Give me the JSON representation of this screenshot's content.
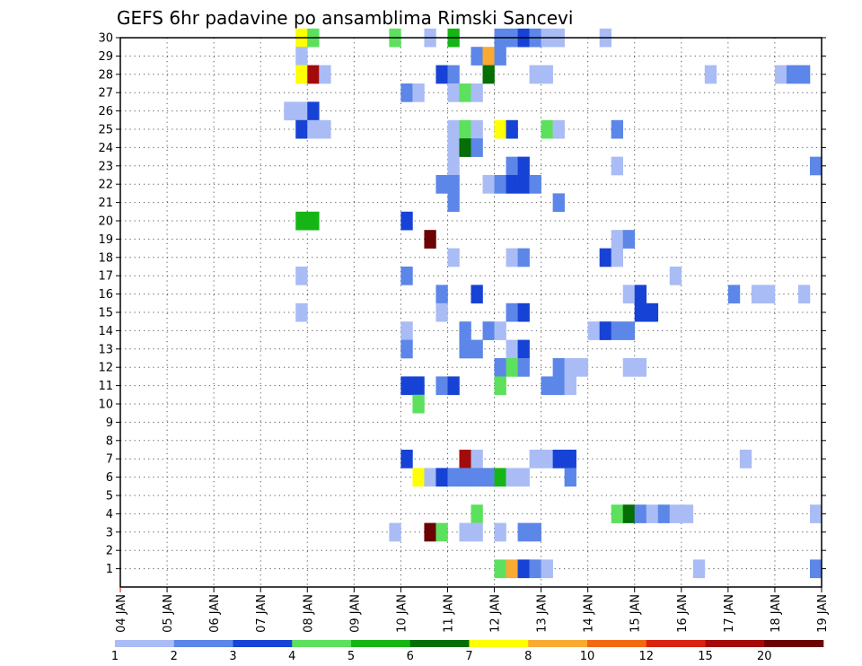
{
  "chart_data": {
    "type": "heatmap",
    "title": "GEFS 6hr padavine po ansamblima Rimski Sancevi",
    "xlabel": "",
    "ylabel": "",
    "x_tick_labels": [
      "04 JAN",
      "05 JAN",
      "06 JAN",
      "07 JAN",
      "08 JAN",
      "09 JAN",
      "10 JAN",
      "11 JAN",
      "12 JAN",
      "13 JAN",
      "14 JAN",
      "15 JAN",
      "16 JAN",
      "17 JAN",
      "18 JAN",
      "19 JAN"
    ],
    "y_tick_labels": [
      "1",
      "2",
      "3",
      "4",
      "5",
      "6",
      "7",
      "8",
      "9",
      "10",
      "11",
      "12",
      "13",
      "14",
      "15",
      "16",
      "17",
      "18",
      "19",
      "20",
      "21",
      "22",
      "23",
      "24",
      "25",
      "26",
      "27",
      "28",
      "29",
      "30"
    ],
    "x_range_days": [
      4,
      19
    ],
    "y_range_members": [
      0,
      30
    ],
    "time_step_hours": 6,
    "grid": true,
    "colorbar_position": "bottom",
    "colorbar_labels": [
      "1",
      "2",
      "3",
      "4",
      "5",
      "6",
      "7",
      "8",
      "10",
      "12",
      "15",
      "20"
    ],
    "colorbar_colors": [
      "#aabcf5",
      "#5c86e8",
      "#1742d6",
      "#5de05d",
      "#16b516",
      "#056e05",
      "#ffff00",
      "#f9aa33",
      "#f26915",
      "#d92312",
      "#a30a0a",
      "#6b0303"
    ],
    "cells_note": "each cell: member, start day (day of January, 6-hour step), class index into colorbar_colors",
    "cells": [
      {
        "m": 30,
        "d": 7.75,
        "c": 6
      },
      {
        "m": 30,
        "d": 8.0,
        "c": 3
      },
      {
        "m": 30,
        "d": 9.75,
        "c": 3
      },
      {
        "m": 30,
        "d": 10.5,
        "c": 0
      },
      {
        "m": 30,
        "d": 11.0,
        "c": 4
      },
      {
        "m": 30,
        "d": 12.0,
        "c": 1
      },
      {
        "m": 30,
        "d": 12.25,
        "c": 1
      },
      {
        "m": 30,
        "d": 12.5,
        "c": 2
      },
      {
        "m": 30,
        "d": 12.75,
        "c": 1
      },
      {
        "m": 30,
        "d": 13.0,
        "c": 0
      },
      {
        "m": 30,
        "d": 13.25,
        "c": 0
      },
      {
        "m": 30,
        "d": 14.25,
        "c": 0
      },
      {
        "m": 29,
        "d": 7.75,
        "c": 0
      },
      {
        "m": 29,
        "d": 11.5,
        "c": 1
      },
      {
        "m": 29,
        "d": 11.75,
        "c": 7
      },
      {
        "m": 29,
        "d": 12.0,
        "c": 1
      },
      {
        "m": 28,
        "d": 7.75,
        "c": 6
      },
      {
        "m": 28,
        "d": 8.0,
        "c": 10
      },
      {
        "m": 28,
        "d": 8.25,
        "c": 0
      },
      {
        "m": 28,
        "d": 10.75,
        "c": 2
      },
      {
        "m": 28,
        "d": 11.0,
        "c": 1
      },
      {
        "m": 28,
        "d": 11.75,
        "c": 5
      },
      {
        "m": 28,
        "d": 12.75,
        "c": 0
      },
      {
        "m": 28,
        "d": 13.0,
        "c": 0
      },
      {
        "m": 28,
        "d": 16.5,
        "c": 0
      },
      {
        "m": 28,
        "d": 18.0,
        "c": 0
      },
      {
        "m": 28,
        "d": 18.25,
        "c": 1
      },
      {
        "m": 28,
        "d": 18.5,
        "c": 1
      },
      {
        "m": 27,
        "d": 10.0,
        "c": 1
      },
      {
        "m": 27,
        "d": 10.25,
        "c": 0
      },
      {
        "m": 27,
        "d": 11.0,
        "c": 0
      },
      {
        "m": 27,
        "d": 11.25,
        "c": 3
      },
      {
        "m": 27,
        "d": 11.5,
        "c": 0
      },
      {
        "m": 26,
        "d": 7.5,
        "c": 0
      },
      {
        "m": 26,
        "d": 7.75,
        "c": 0
      },
      {
        "m": 26,
        "d": 8.0,
        "c": 2
      },
      {
        "m": 25,
        "d": 7.75,
        "c": 2
      },
      {
        "m": 25,
        "d": 8.0,
        "c": 0
      },
      {
        "m": 25,
        "d": 8.25,
        "c": 0
      },
      {
        "m": 25,
        "d": 11.0,
        "c": 0
      },
      {
        "m": 25,
        "d": 11.25,
        "c": 3
      },
      {
        "m": 25,
        "d": 11.5,
        "c": 0
      },
      {
        "m": 25,
        "d": 12.0,
        "c": 6
      },
      {
        "m": 25,
        "d": 12.25,
        "c": 2
      },
      {
        "m": 25,
        "d": 13.0,
        "c": 3
      },
      {
        "m": 25,
        "d": 13.25,
        "c": 0
      },
      {
        "m": 25,
        "d": 14.5,
        "c": 1
      },
      {
        "m": 24,
        "d": 11.0,
        "c": 0
      },
      {
        "m": 24,
        "d": 11.25,
        "c": 5
      },
      {
        "m": 24,
        "d": 11.5,
        "c": 1
      },
      {
        "m": 23,
        "d": 11.0,
        "c": 0
      },
      {
        "m": 23,
        "d": 12.25,
        "c": 1
      },
      {
        "m": 23,
        "d": 12.5,
        "c": 2
      },
      {
        "m": 23,
        "d": 14.5,
        "c": 0
      },
      {
        "m": 23,
        "d": 18.75,
        "c": 1
      },
      {
        "m": 22,
        "d": 10.75,
        "c": 1
      },
      {
        "m": 22,
        "d": 11.0,
        "c": 1
      },
      {
        "m": 22,
        "d": 11.75,
        "c": 0
      },
      {
        "m": 22,
        "d": 12.0,
        "c": 1
      },
      {
        "m": 22,
        "d": 12.25,
        "c": 2
      },
      {
        "m": 22,
        "d": 12.5,
        "c": 2
      },
      {
        "m": 22,
        "d": 12.75,
        "c": 1
      },
      {
        "m": 21,
        "d": 11.0,
        "c": 1
      },
      {
        "m": 21,
        "d": 13.25,
        "c": 1
      },
      {
        "m": 20,
        "d": 7.75,
        "c": 4
      },
      {
        "m": 20,
        "d": 8.0,
        "c": 4
      },
      {
        "m": 20,
        "d": 10.0,
        "c": 2
      },
      {
        "m": 19,
        "d": 10.5,
        "c": 11
      },
      {
        "m": 19,
        "d": 14.5,
        "c": 0
      },
      {
        "m": 19,
        "d": 14.75,
        "c": 1
      },
      {
        "m": 18,
        "d": 11.0,
        "c": 0
      },
      {
        "m": 18,
        "d": 12.25,
        "c": 0
      },
      {
        "m": 18,
        "d": 12.5,
        "c": 1
      },
      {
        "m": 18,
        "d": 14.25,
        "c": 2
      },
      {
        "m": 18,
        "d": 14.5,
        "c": 0
      },
      {
        "m": 17,
        "d": 7.75,
        "c": 0
      },
      {
        "m": 17,
        "d": 10.0,
        "c": 1
      },
      {
        "m": 17,
        "d": 15.75,
        "c": 0
      },
      {
        "m": 16,
        "d": 10.75,
        "c": 1
      },
      {
        "m": 16,
        "d": 11.5,
        "c": 2
      },
      {
        "m": 16,
        "d": 14.75,
        "c": 0
      },
      {
        "m": 16,
        "d": 15.0,
        "c": 2
      },
      {
        "m": 16,
        "d": 17.0,
        "c": 1
      },
      {
        "m": 16,
        "d": 17.5,
        "c": 0
      },
      {
        "m": 16,
        "d": 17.75,
        "c": 0
      },
      {
        "m": 16,
        "d": 18.5,
        "c": 0
      },
      {
        "m": 15,
        "d": 7.75,
        "c": 0
      },
      {
        "m": 15,
        "d": 10.75,
        "c": 0
      },
      {
        "m": 15,
        "d": 12.25,
        "c": 1
      },
      {
        "m": 15,
        "d": 12.5,
        "c": 2
      },
      {
        "m": 15,
        "d": 15.0,
        "c": 2
      },
      {
        "m": 15,
        "d": 15.25,
        "c": 2
      },
      {
        "m": 14,
        "d": 10.0,
        "c": 0
      },
      {
        "m": 14,
        "d": 11.25,
        "c": 1
      },
      {
        "m": 14,
        "d": 11.75,
        "c": 1
      },
      {
        "m": 14,
        "d": 12.0,
        "c": 0
      },
      {
        "m": 14,
        "d": 14.0,
        "c": 0
      },
      {
        "m": 14,
        "d": 14.25,
        "c": 2
      },
      {
        "m": 14,
        "d": 14.5,
        "c": 1
      },
      {
        "m": 14,
        "d": 14.75,
        "c": 1
      },
      {
        "m": 13,
        "d": 10.0,
        "c": 1
      },
      {
        "m": 13,
        "d": 11.25,
        "c": 1
      },
      {
        "m": 13,
        "d": 11.5,
        "c": 1
      },
      {
        "m": 13,
        "d": 12.25,
        "c": 0
      },
      {
        "m": 13,
        "d": 12.5,
        "c": 2
      },
      {
        "m": 12,
        "d": 12.0,
        "c": 1
      },
      {
        "m": 12,
        "d": 12.25,
        "c": 3
      },
      {
        "m": 12,
        "d": 12.5,
        "c": 1
      },
      {
        "m": 12,
        "d": 13.25,
        "c": 1
      },
      {
        "m": 12,
        "d": 13.5,
        "c": 0
      },
      {
        "m": 12,
        "d": 13.75,
        "c": 0
      },
      {
        "m": 12,
        "d": 14.75,
        "c": 0
      },
      {
        "m": 12,
        "d": 15.0,
        "c": 0
      },
      {
        "m": 11,
        "d": 10.0,
        "c": 2
      },
      {
        "m": 11,
        "d": 10.25,
        "c": 2
      },
      {
        "m": 11,
        "d": 10.75,
        "c": 1
      },
      {
        "m": 11,
        "d": 11.0,
        "c": 2
      },
      {
        "m": 11,
        "d": 12.0,
        "c": 3
      },
      {
        "m": 11,
        "d": 13.0,
        "c": 1
      },
      {
        "m": 11,
        "d": 13.25,
        "c": 1
      },
      {
        "m": 11,
        "d": 13.5,
        "c": 0
      },
      {
        "m": 10,
        "d": 10.25,
        "c": 3
      },
      {
        "m": 7,
        "d": 10.0,
        "c": 2
      },
      {
        "m": 7,
        "d": 11.25,
        "c": 10
      },
      {
        "m": 7,
        "d": 11.5,
        "c": 0
      },
      {
        "m": 7,
        "d": 12.75,
        "c": 0
      },
      {
        "m": 7,
        "d": 13.0,
        "c": 0
      },
      {
        "m": 7,
        "d": 13.25,
        "c": 2
      },
      {
        "m": 7,
        "d": 13.5,
        "c": 2
      },
      {
        "m": 7,
        "d": 17.25,
        "c": 0
      },
      {
        "m": 6,
        "d": 10.25,
        "c": 6
      },
      {
        "m": 6,
        "d": 10.5,
        "c": 0
      },
      {
        "m": 6,
        "d": 10.75,
        "c": 2
      },
      {
        "m": 6,
        "d": 11.0,
        "c": 1
      },
      {
        "m": 6,
        "d": 11.25,
        "c": 1
      },
      {
        "m": 6,
        "d": 11.5,
        "c": 1
      },
      {
        "m": 6,
        "d": 11.75,
        "c": 1
      },
      {
        "m": 6,
        "d": 12.0,
        "c": 4
      },
      {
        "m": 6,
        "d": 12.25,
        "c": 0
      },
      {
        "m": 6,
        "d": 12.5,
        "c": 0
      },
      {
        "m": 6,
        "d": 13.5,
        "c": 1
      },
      {
        "m": 4,
        "d": 11.5,
        "c": 3
      },
      {
        "m": 4,
        "d": 14.5,
        "c": 3
      },
      {
        "m": 4,
        "d": 14.75,
        "c": 5
      },
      {
        "m": 4,
        "d": 15.0,
        "c": 1
      },
      {
        "m": 4,
        "d": 15.25,
        "c": 0
      },
      {
        "m": 4,
        "d": 15.5,
        "c": 1
      },
      {
        "m": 4,
        "d": 15.75,
        "c": 0
      },
      {
        "m": 4,
        "d": 16.0,
        "c": 0
      },
      {
        "m": 4,
        "d": 18.75,
        "c": 0
      },
      {
        "m": 3,
        "d": 9.75,
        "c": 0
      },
      {
        "m": 3,
        "d": 10.5,
        "c": 11
      },
      {
        "m": 3,
        "d": 10.75,
        "c": 3
      },
      {
        "m": 3,
        "d": 11.25,
        "c": 0
      },
      {
        "m": 3,
        "d": 11.5,
        "c": 0
      },
      {
        "m": 3,
        "d": 12.0,
        "c": 0
      },
      {
        "m": 3,
        "d": 12.5,
        "c": 1
      },
      {
        "m": 3,
        "d": 12.75,
        "c": 1
      },
      {
        "m": 1,
        "d": 12.0,
        "c": 3
      },
      {
        "m": 1,
        "d": 12.25,
        "c": 7
      },
      {
        "m": 1,
        "d": 12.5,
        "c": 2
      },
      {
        "m": 1,
        "d": 12.75,
        "c": 1
      },
      {
        "m": 1,
        "d": 13.0,
        "c": 0
      },
      {
        "m": 1,
        "d": 16.25,
        "c": 0
      },
      {
        "m": 1,
        "d": 18.75,
        "c": 1
      }
    ]
  }
}
